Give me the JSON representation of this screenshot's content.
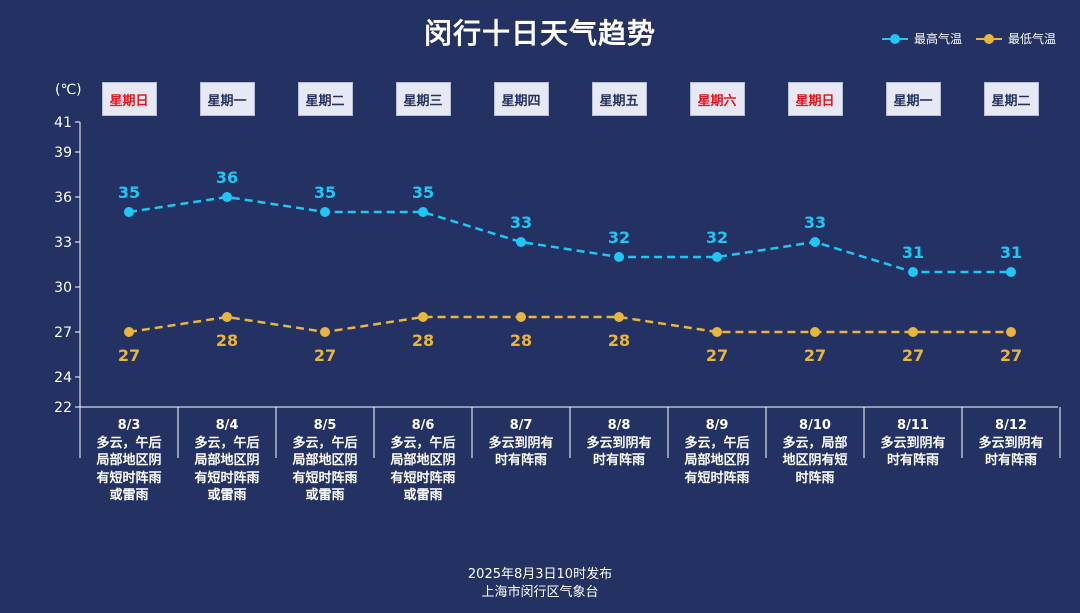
{
  "title": "闵行十日天气趋势",
  "unit_label": "(℃)",
  "legend": {
    "high": "最高气温",
    "low": "最低气温"
  },
  "footer": {
    "line1": "2025年8月3日10时发布",
    "line2": "上海市闵行区气象台"
  },
  "colors": {
    "background": "#233163",
    "high": "#1ec8f5",
    "low": "#e9b53c",
    "weekend": "#e8141b",
    "axis": "#ffffff"
  },
  "chart_data": {
    "type": "line",
    "x": [
      "8/3",
      "8/4",
      "8/5",
      "8/6",
      "8/7",
      "8/8",
      "8/9",
      "8/10",
      "8/11",
      "8/12"
    ],
    "weekdays": [
      "星期日",
      "星期一",
      "星期二",
      "星期三",
      "星期四",
      "星期五",
      "星期六",
      "星期日",
      "星期一",
      "星期二"
    ],
    "weekend": [
      true,
      false,
      false,
      false,
      false,
      false,
      true,
      true,
      false,
      false
    ],
    "descriptions": [
      "多云，午后局部地区阴有短时阵雨或雷雨",
      "多云，午后局部地区阴有短时阵雨或雷雨",
      "多云，午后局部地区阴有短时阵雨或雷雨",
      "多云，午后局部地区阴有短时阵雨或雷雨",
      "多云到阴有时有阵雨",
      "多云到阴有时有阵雨",
      "多云，午后局部地区阴有短时阵雨",
      "多云，局部地区阴有短时阵雨",
      "多云到阴有时有阵雨",
      "多云到阴有时有阵雨"
    ],
    "series": [
      {
        "name": "最高气温",
        "values": [
          35,
          36,
          35,
          35,
          33,
          32,
          32,
          33,
          31,
          31
        ]
      },
      {
        "name": "最低气温",
        "values": [
          27,
          28,
          27,
          28,
          28,
          28,
          27,
          27,
          27,
          27
        ]
      }
    ],
    "yticks": [
      22,
      24,
      27,
      30,
      33,
      36,
      39,
      41
    ],
    "ylim": [
      22,
      41
    ],
    "grid": false,
    "legend_position": "top-right",
    "line_style": "dashed"
  }
}
